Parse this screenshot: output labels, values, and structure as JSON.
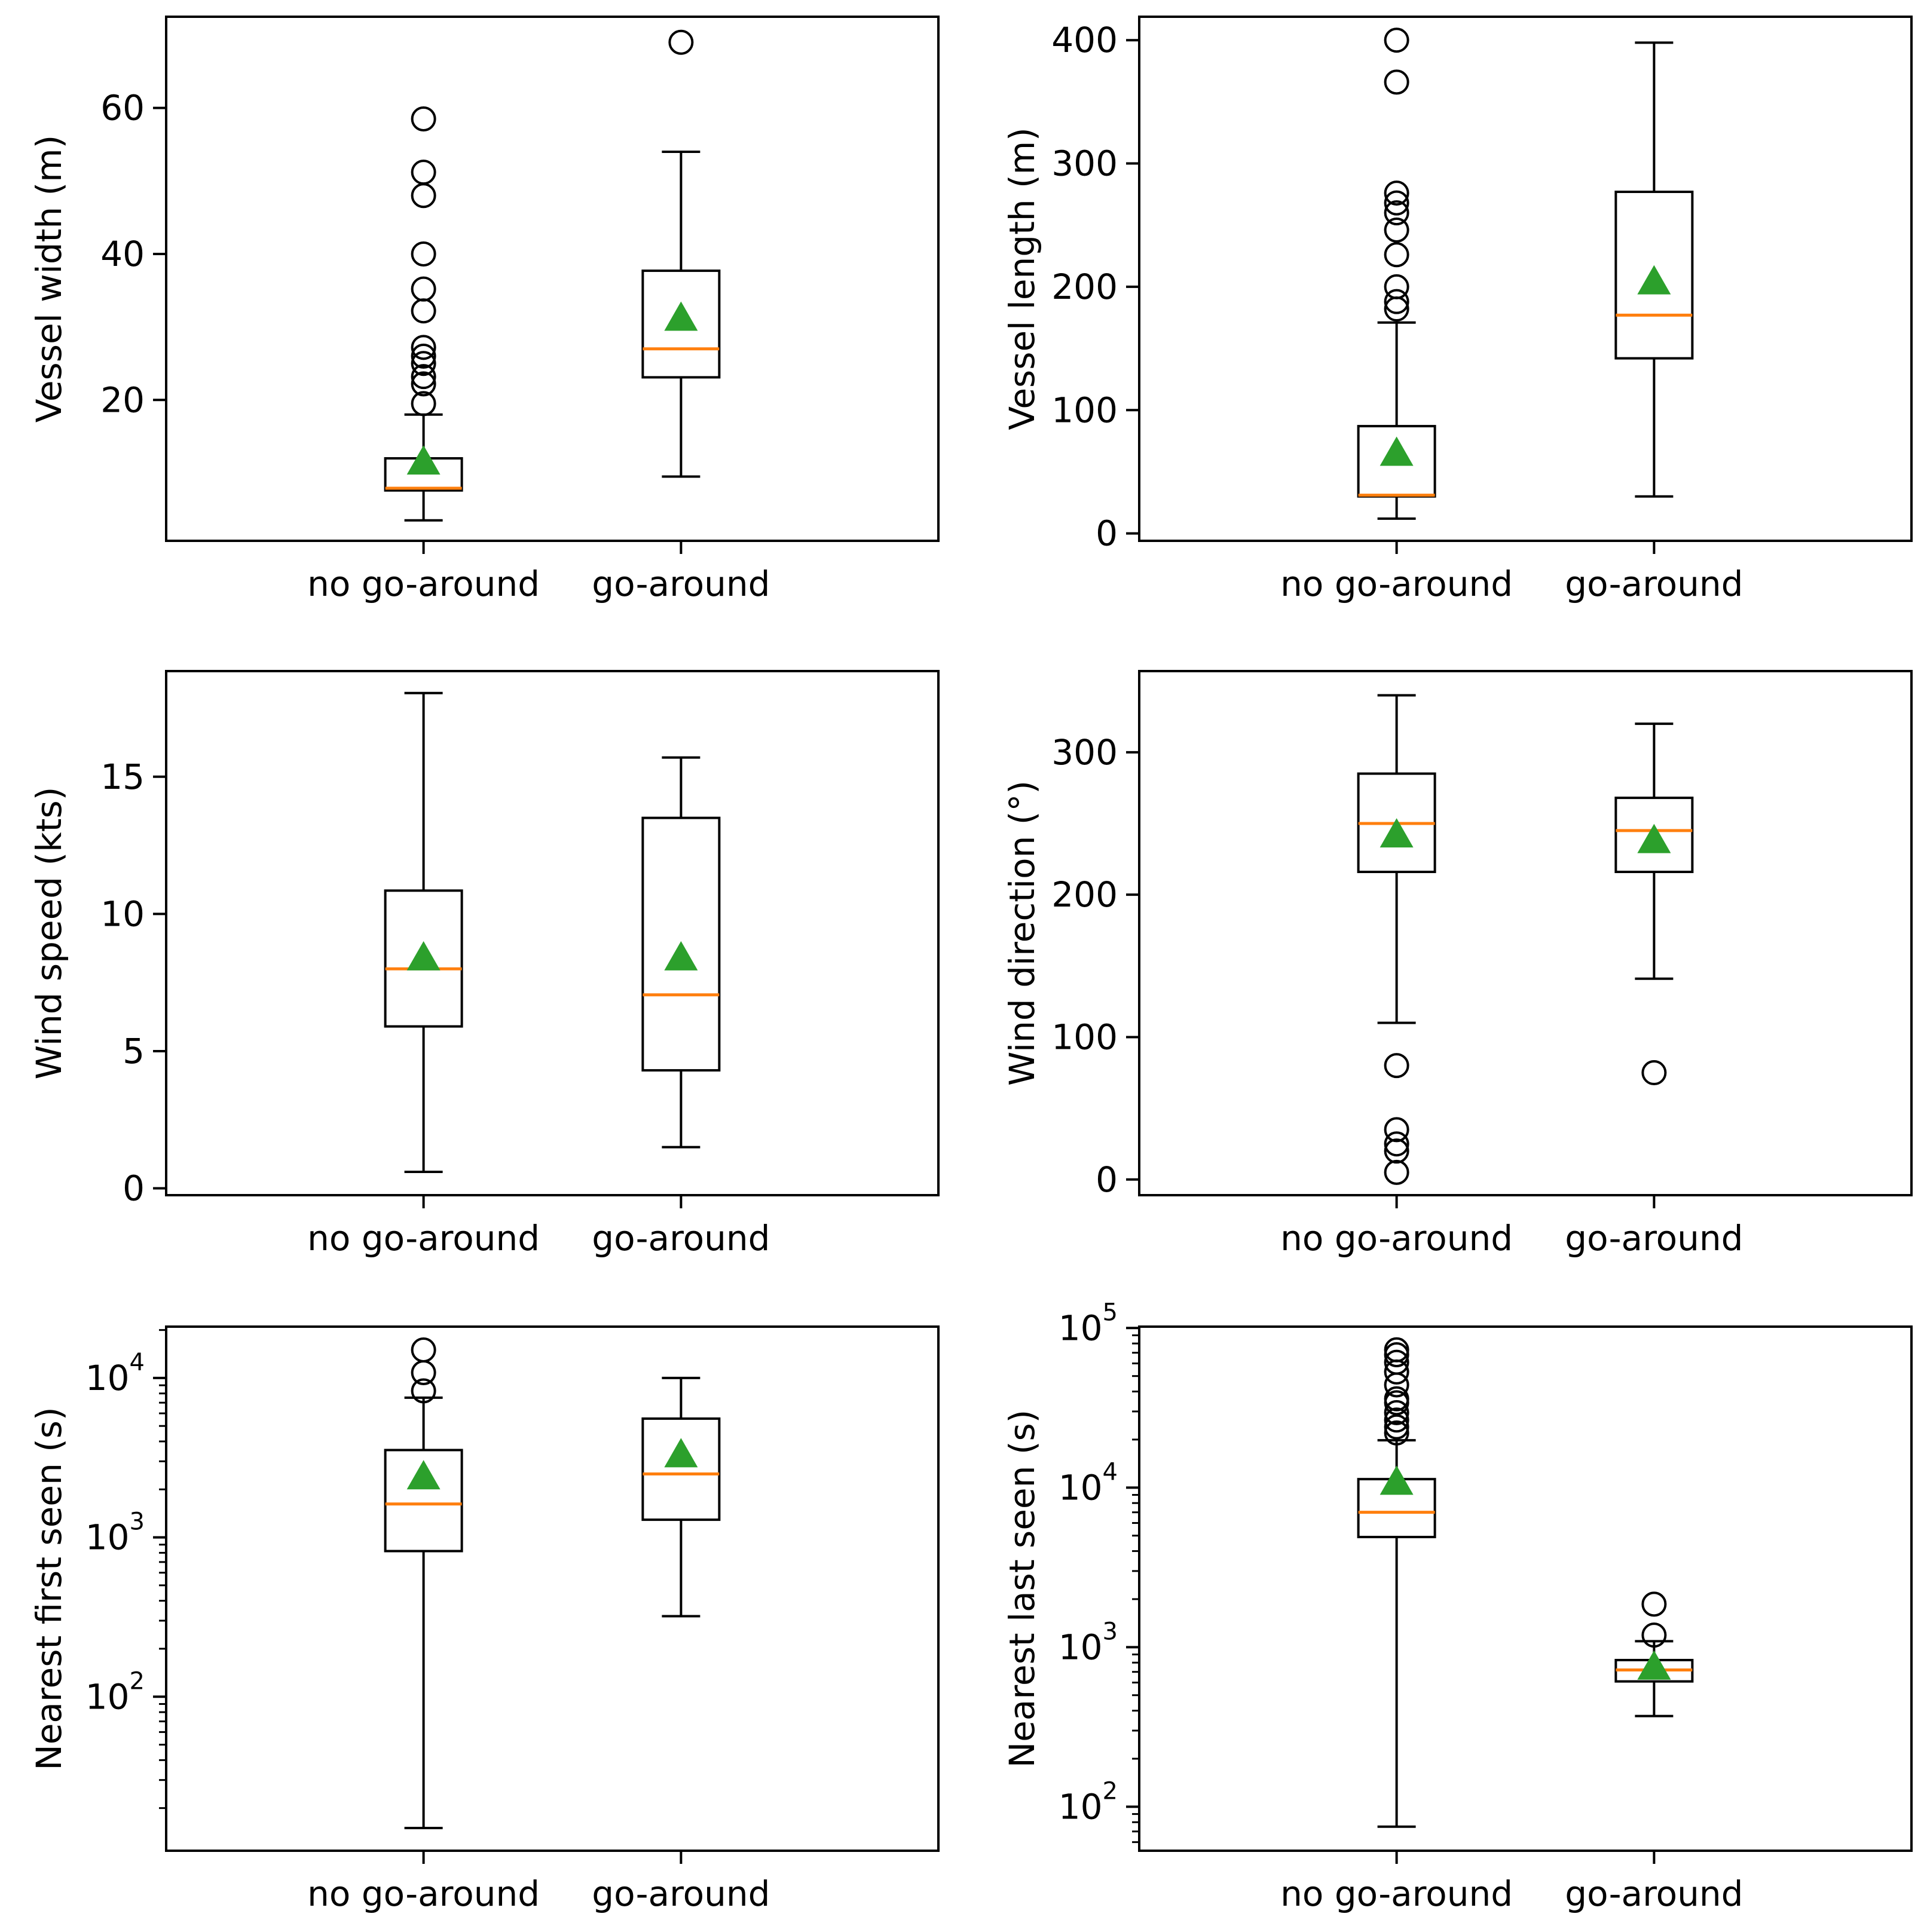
{
  "colors": {
    "box": "#000000",
    "median": "#ff7f0e",
    "mean": "#2ca02c",
    "flier": "#000000"
  },
  "chart_data": [
    {
      "type": "box",
      "title": "",
      "xlabel": "",
      "ylabel": "Vessel width (m)",
      "yscale": "linear",
      "ylim": [
        0.7,
        72.5
      ],
      "yticks": [
        20,
        40,
        60
      ],
      "ytick_labels": [
        "20",
        "40",
        "60"
      ],
      "categories": [
        "no go-around",
        "go-around"
      ],
      "boxes": [
        {
          "name": "no go-around",
          "whislo": 3.5,
          "q1": 7.6,
          "med": 7.9,
          "q3": 12.0,
          "whishi": 18.0,
          "mean": 11.5,
          "fliers": [
            58.5,
            51.2,
            48.0,
            40.0,
            35.2,
            32.2,
            27.2,
            26.0,
            25.0,
            23.2,
            22.2,
            19.5
          ]
        },
        {
          "name": "go-around",
          "whislo": 9.5,
          "q1": 23.1,
          "med": 27.0,
          "q3": 37.7,
          "whishi": 54.0,
          "mean": 31.2,
          "fliers": [
            69.0
          ]
        }
      ]
    },
    {
      "type": "box",
      "title": "",
      "xlabel": "",
      "ylabel": "Vessel length (m)",
      "yscale": "linear",
      "ylim": [
        -6,
        419
      ],
      "yticks": [
        0,
        100,
        200,
        300,
        400
      ],
      "ytick_labels": [
        "0",
        "100",
        "200",
        "300",
        "400"
      ],
      "categories": [
        "no go-around",
        "go-around"
      ],
      "boxes": [
        {
          "name": "no go-around",
          "whislo": 12,
          "q1": 30,
          "med": 31,
          "q3": 87,
          "whishi": 171,
          "mean": 65,
          "fliers": [
            400,
            366,
            276,
            268,
            260,
            246,
            226,
            200,
            188,
            182
          ]
        },
        {
          "name": "go-around",
          "whislo": 30,
          "q1": 142,
          "med": 177,
          "q3": 277,
          "whishi": 398,
          "mean": 204,
          "fliers": []
        }
      ]
    },
    {
      "type": "box",
      "title": "",
      "xlabel": "",
      "ylabel": "Wind speed (kts)",
      "yscale": "linear",
      "ylim": [
        -0.25,
        18.85
      ],
      "yticks": [
        0,
        5,
        10,
        15
      ],
      "ytick_labels": [
        "0",
        "5",
        "10",
        "15"
      ],
      "categories": [
        "no go-around",
        "go-around"
      ],
      "boxes": [
        {
          "name": "no go-around",
          "whislo": 0.6,
          "q1": 5.9,
          "med": 8.0,
          "q3": 10.85,
          "whishi": 18.05,
          "mean": 8.4,
          "fliers": []
        },
        {
          "name": "go-around",
          "whislo": 1.5,
          "q1": 4.3,
          "med": 7.05,
          "q3": 13.5,
          "whishi": 15.7,
          "mean": 8.4,
          "fliers": []
        }
      ]
    },
    {
      "type": "box",
      "title": "",
      "xlabel": "",
      "ylabel": "Wind direction (°)",
      "yscale": "linear",
      "ylim": [
        -11,
        357
      ],
      "yticks": [
        0,
        100,
        200,
        300
      ],
      "ytick_labels": [
        "0",
        "100",
        "200",
        "300"
      ],
      "categories": [
        "no go-around",
        "go-around"
      ],
      "boxes": [
        {
          "name": "no go-around",
          "whislo": 110,
          "q1": 216,
          "med": 250,
          "q3": 285,
          "whishi": 340,
          "mean": 242,
          "fliers": [
            80,
            35,
            25,
            20,
            5
          ]
        },
        {
          "name": "go-around",
          "whislo": 141,
          "q1": 216,
          "med": 245,
          "q3": 268,
          "whishi": 320,
          "mean": 238,
          "fliers": [
            75
          ]
        }
      ]
    },
    {
      "type": "box",
      "title": "",
      "xlabel": "",
      "ylabel": "Nearest first seen (s)",
      "yscale": "log",
      "ylim": [
        10.8,
        21000
      ],
      "yticks": [
        100,
        1000,
        10000
      ],
      "ytick_labels": [
        {
          "base": "10",
          "exp": "2"
        },
        {
          "base": "10",
          "exp": "3"
        },
        {
          "base": "10",
          "exp": "4"
        }
      ],
      "categories": [
        "no go-around",
        "go-around"
      ],
      "boxes": [
        {
          "name": "no go-around",
          "whislo": 15,
          "q1": 820,
          "med": 1620,
          "q3": 3530,
          "whishi": 7520,
          "mean": 2400,
          "fliers": [
            8300,
            10800,
            15000
          ]
        },
        {
          "name": "go-around",
          "whislo": 320,
          "q1": 1290,
          "med": 2500,
          "q3": 5560,
          "whishi": 10000,
          "mean": 3300,
          "fliers": []
        }
      ]
    },
    {
      "type": "box",
      "title": "",
      "xlabel": "",
      "ylabel": "Nearest last seen (s)",
      "yscale": "log",
      "ylim": [
        53,
        102000
      ],
      "yticks": [
        100,
        1000,
        10000,
        100000
      ],
      "ytick_labels": [
        {
          "base": "10",
          "exp": "2"
        },
        {
          "base": "10",
          "exp": "3"
        },
        {
          "base": "10",
          "exp": "4"
        },
        {
          "base": "10",
          "exp": "5"
        }
      ],
      "categories": [
        "no go-around",
        "go-around"
      ],
      "boxes": [
        {
          "name": "no go-around",
          "whislo": 75,
          "q1": 4900,
          "med": 7000,
          "q3": 11300,
          "whishi": 19800,
          "mean": 10800,
          "fliers": [
            22000,
            24000,
            26500,
            29500,
            34000,
            36000,
            44000,
            53000,
            61000,
            68000,
            73000
          ]
        },
        {
          "name": "go-around",
          "whislo": 370,
          "q1": 610,
          "med": 720,
          "q3": 830,
          "whishi": 1090,
          "mean": 750,
          "fliers": [
            1190,
            1860
          ]
        }
      ]
    }
  ]
}
